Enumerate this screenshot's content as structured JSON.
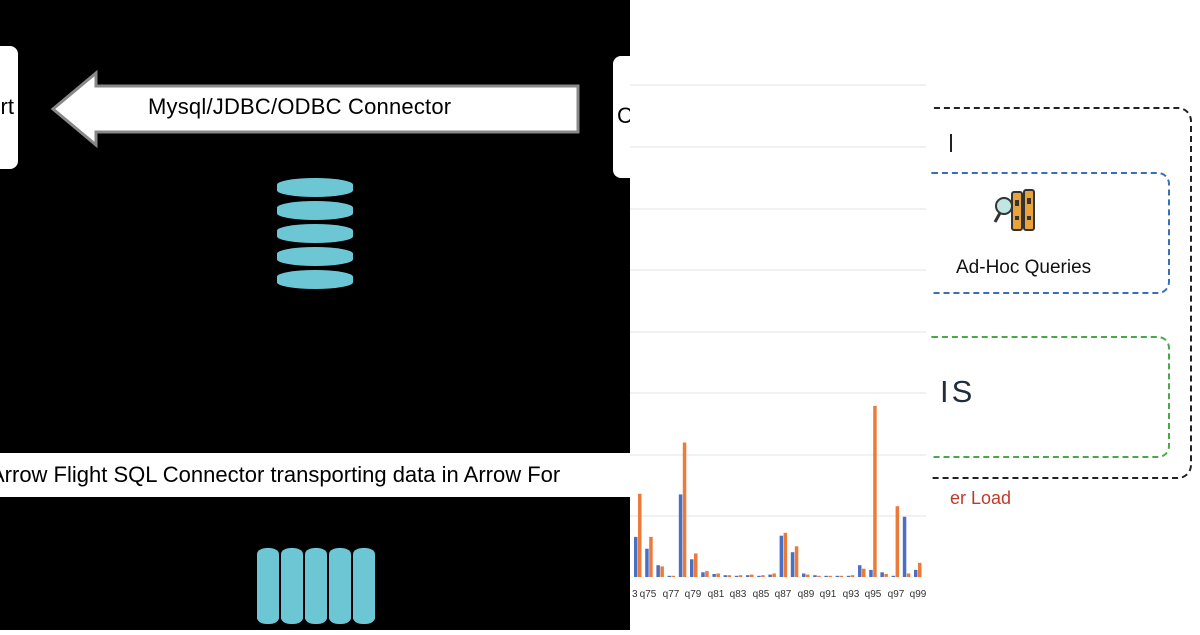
{
  "left_panel": {
    "left_box_fragment": "rt",
    "right_box_fragment": "C",
    "connector_arrow_label": "Mysql/JDBC/ODBC Connector",
    "banner_text": "Arrow Flight SQL Connector transporting data in Arrow For",
    "colors": {
      "background": "#000000",
      "cylinder": "#6cc6d4",
      "box": "#ffffff"
    },
    "icons": [
      "left-arrow-icon",
      "row-store-stack-icon",
      "column-store-icon"
    ]
  },
  "chart_data": {
    "type": "bar",
    "tick_labels": [
      "3",
      "q75",
      "q77",
      "q79",
      "q81",
      "q83",
      "q85",
      "q87",
      "q89",
      "q91",
      "q93",
      "q95",
      "q97",
      "q99"
    ],
    "series": [
      {
        "color": "#4a6fc4",
        "values": [
          68,
          48,
          20,
          2,
          140,
          30,
          8,
          5,
          3,
          2,
          3,
          2,
          4,
          70,
          42,
          6,
          3,
          2,
          2,
          2,
          20,
          12,
          8,
          2,
          102,
          12
        ]
      },
      {
        "color": "#ec7b3a",
        "values": [
          141,
          68,
          18,
          2,
          228,
          40,
          10,
          6,
          3,
          3,
          4,
          3,
          6,
          75,
          52,
          4,
          2,
          2,
          2,
          3,
          14,
          290,
          5,
          120,
          6,
          24
        ]
      }
    ],
    "grid": true,
    "legend": "none"
  },
  "right_panel": {
    "adhoc_label": "Ad-Hoc Queries",
    "green_box_fragment": "IS",
    "bottom_fragment": "er Load",
    "icons": [
      "magnifier-files-icon"
    ],
    "colors": {
      "blue_border": "#3a6fb5",
      "green_border": "#4aa84a",
      "red_text": "#c0392b"
    }
  }
}
